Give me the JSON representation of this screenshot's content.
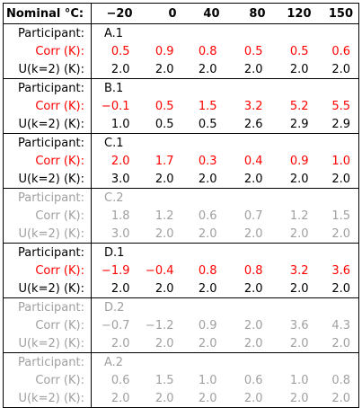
{
  "header": {
    "label": "Nominal °C:",
    "temps": [
      "−20",
      "0",
      "40",
      "80",
      "120",
      "150"
    ]
  },
  "row_labels": {
    "participant": "Participant:",
    "corr": "Corr (K):",
    "u": "U(k=2) (K):"
  },
  "colors": {
    "corr": "#ff0000",
    "faded": "#a0a0a0",
    "text": "#000000"
  },
  "blocks": [
    {
      "name": "A.1",
      "faded": false,
      "corr": [
        "0.5",
        "0.9",
        "0.8",
        "0.5",
        "0.5",
        "0.6"
      ],
      "u": [
        "2.0",
        "2.0",
        "2.0",
        "2.0",
        "2.0",
        "2.0"
      ]
    },
    {
      "name": "B.1",
      "faded": false,
      "corr": [
        "−0.1",
        "0.5",
        "1.5",
        "3.2",
        "5.2",
        "5.5"
      ],
      "u": [
        "1.0",
        "0.5",
        "0.5",
        "2.6",
        "2.9",
        "2.9"
      ]
    },
    {
      "name": "C.1",
      "faded": false,
      "corr": [
        "2.0",
        "1.7",
        "0.3",
        "0.4",
        "0.9",
        "1.0"
      ],
      "u": [
        "3.0",
        "2.0",
        "2.0",
        "2.0",
        "2.0",
        "2.0"
      ]
    },
    {
      "name": "C.2",
      "faded": true,
      "corr": [
        "1.8",
        "1.2",
        "0.6",
        "0.7",
        "1.2",
        "1.5"
      ],
      "u": [
        "3.0",
        "2.0",
        "2.0",
        "2.0",
        "2.0",
        "2.0"
      ]
    },
    {
      "name": "D.1",
      "faded": false,
      "corr": [
        "−1.9",
        "−0.4",
        "0.8",
        "0.8",
        "3.2",
        "3.6"
      ],
      "u": [
        "2.0",
        "2.0",
        "2.0",
        "2.0",
        "2.0",
        "2.0"
      ]
    },
    {
      "name": "D.2",
      "faded": true,
      "corr": [
        "−0.7",
        "−1.2",
        "0.9",
        "2.0",
        "3.6",
        "4.3"
      ],
      "u": [
        "2.0",
        "2.0",
        "2.0",
        "2.0",
        "2.0",
        "2.0"
      ]
    },
    {
      "name": "A.2",
      "faded": true,
      "corr": [
        "0.6",
        "1.5",
        "1.0",
        "0.6",
        "1.0",
        "0.8"
      ],
      "u": [
        "2.0",
        "2.0",
        "2.0",
        "2.0",
        "2.0",
        "2.0"
      ]
    }
  ]
}
